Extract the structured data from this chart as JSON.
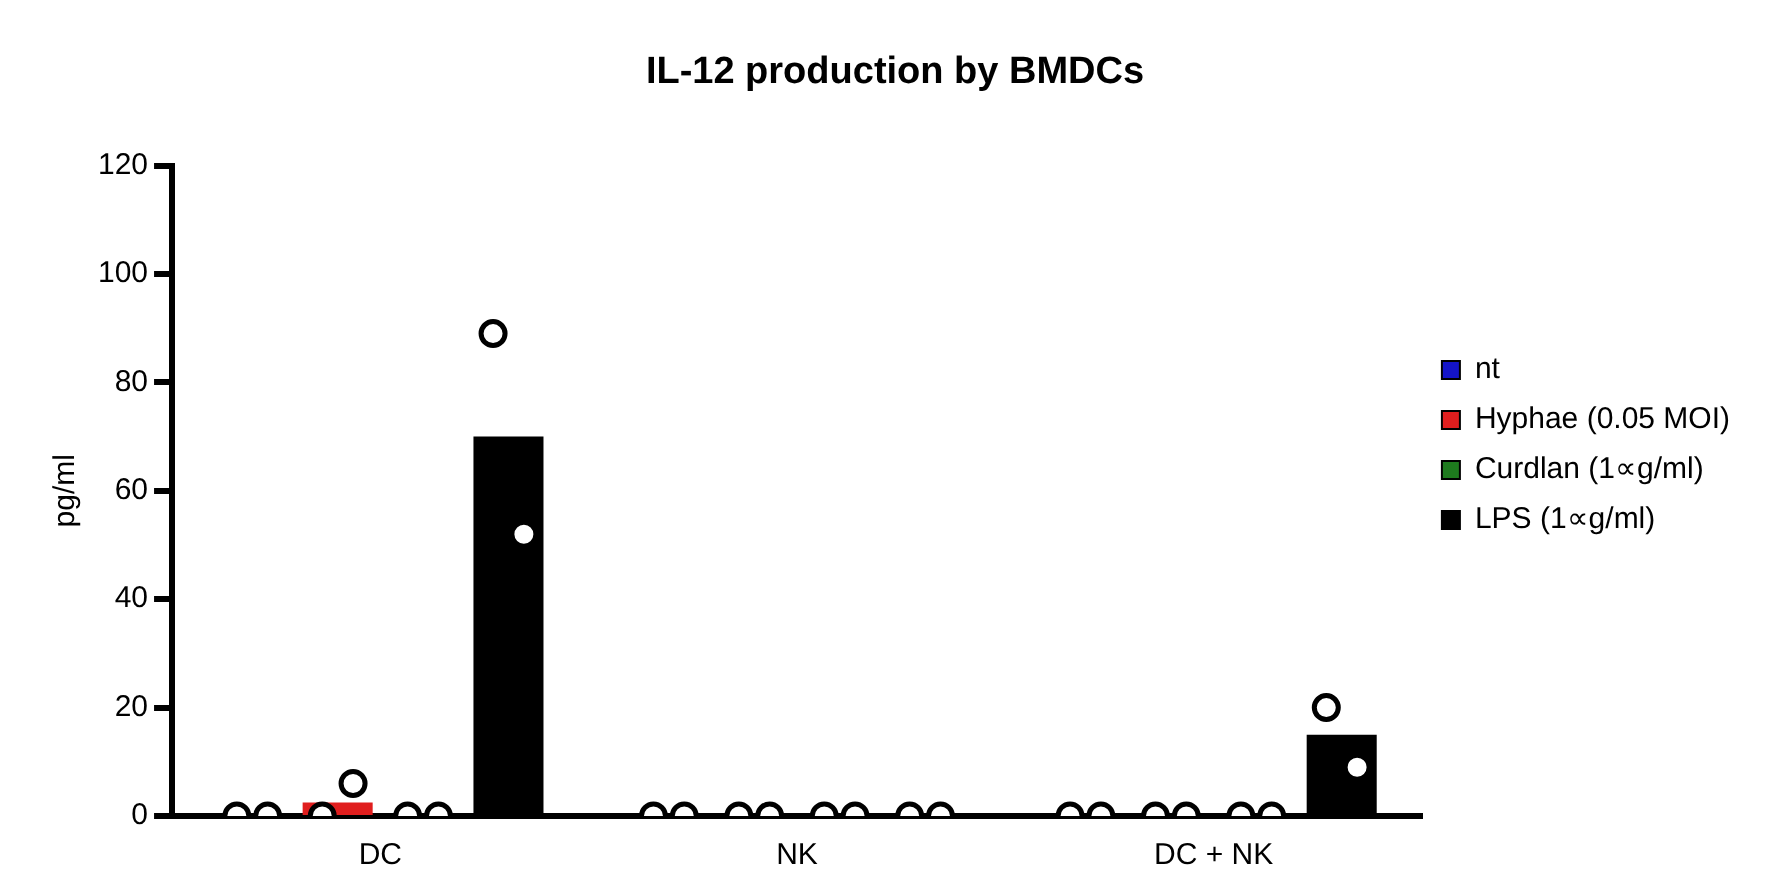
{
  "chart_data": {
    "type": "bar",
    "title": "IL-12 production by BMDCs",
    "ylabel": "pg/ml",
    "categories": [
      "DC",
      "NK",
      "DC + NK"
    ],
    "series": [
      {
        "name": "nt",
        "color": "#1414c8",
        "values": [
          0,
          0,
          0
        ]
      },
      {
        "name": "Hyphae (0.05 MOI)",
        "color": "#e01e1e",
        "values": [
          2.5,
          0,
          0
        ]
      },
      {
        "name": "Curdlan (1∝g/ml)",
        "color": "#1e7a1e",
        "values": [
          0,
          0,
          0
        ]
      },
      {
        "name": "LPS (1∝g/ml)",
        "color": "#000000",
        "values": [
          70,
          0,
          15
        ]
      },
      {
        "type": "scatter",
        "color": "#ffffff",
        "x": [
          "DC",
          "DC",
          "NK",
          "NK",
          "DC + NK",
          "DC + NK"
        ],
        "values": [
          0,
          0,
          0,
          0,
          0,
          0
        ]
      },
      {
        "type": "scatter",
        "color": "#ffffff",
        "x": [
          "DC",
          "DC",
          "NK",
          "NK",
          "DC + NK",
          "DC + NK"
        ],
        "values": [
          0,
          6,
          0,
          0,
          0,
          0
        ]
      },
      {
        "type": "scatter",
        "color": "#ffffff",
        "x": [
          "DC",
          "DC",
          "NK",
          "NK",
          "DC + NK",
          "DC + NK"
        ],
        "values": [
          0,
          0,
          0,
          0,
          0,
          0
        ]
      },
      {
        "type": "scatter",
        "color": "#ffffff",
        "x": [
          "DC",
          "DC",
          "NK",
          "NK",
          "DC + NK",
          "DC + NK"
        ],
        "values": [
          89,
          52,
          0,
          0,
          20,
          9
        ]
      }
    ],
    "ylim": [
      0,
      120
    ],
    "yticks": [
      0,
      20,
      40,
      60,
      80,
      100,
      120
    ],
    "grid": false,
    "legend": "right",
    "marker": "circle"
  }
}
